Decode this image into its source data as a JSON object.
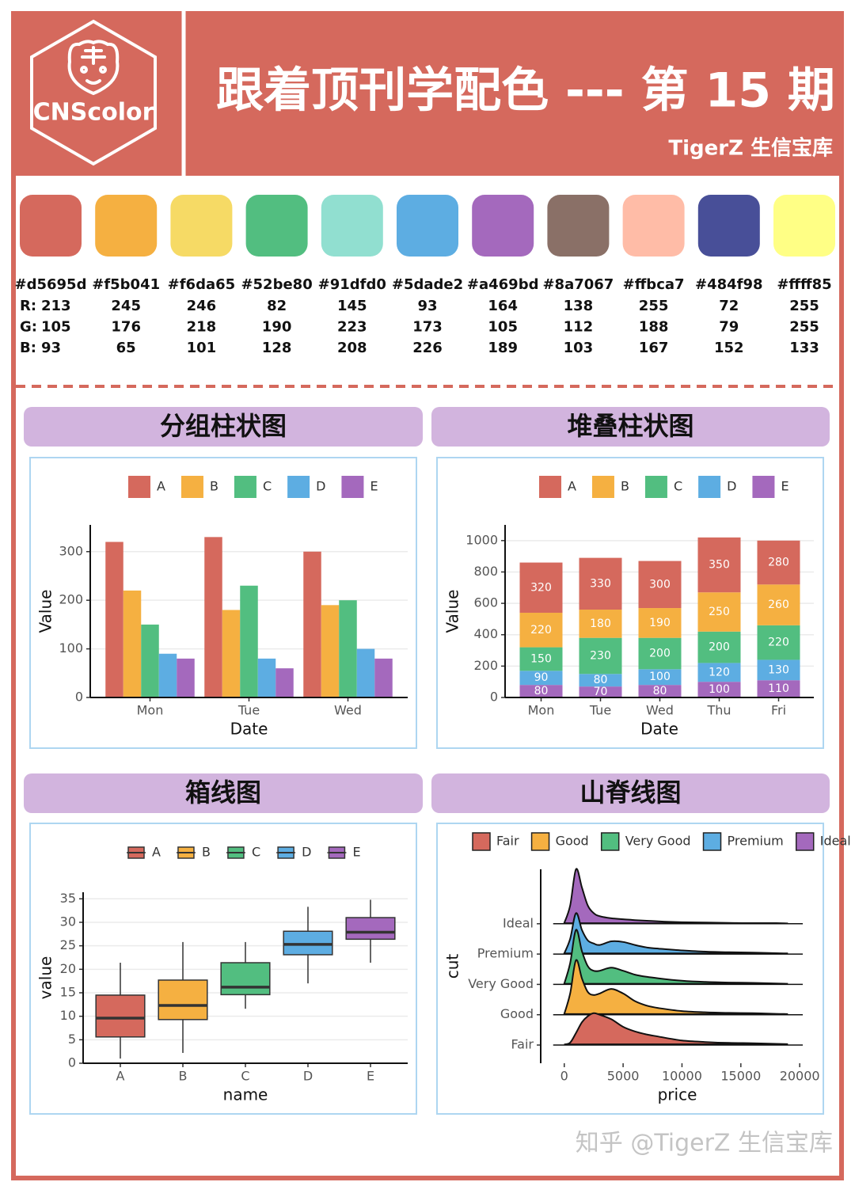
{
  "header": {
    "logo": "CNScolor",
    "title": "跟着顶刊学配色 --- 第 15 期",
    "subtitle": "TigerZ 生信宝库"
  },
  "palette": {
    "channel_labels": [
      "R:",
      "G:",
      "B:"
    ],
    "colors": [
      {
        "hex": "#d5695d",
        "r": 213,
        "g": 105,
        "b": 93
      },
      {
        "hex": "#f5b041",
        "r": 245,
        "g": 176,
        "b": 65
      },
      {
        "hex": "#f6da65",
        "r": 246,
        "g": 218,
        "b": 101
      },
      {
        "hex": "#52be80",
        "r": 82,
        "g": 190,
        "b": 128
      },
      {
        "hex": "#91dfd0",
        "r": 145,
        "g": 223,
        "b": 208
      },
      {
        "hex": "#5dade2",
        "r": 93,
        "g": 173,
        "b": 226
      },
      {
        "hex": "#a469bd",
        "r": 164,
        "g": 105,
        "b": 189
      },
      {
        "hex": "#8a7067",
        "r": 138,
        "g": 112,
        "b": 103
      },
      {
        "hex": "#ffbca7",
        "r": 255,
        "g": 188,
        "b": 167
      },
      {
        "hex": "#484f98",
        "r": 72,
        "g": 79,
        "b": 152
      },
      {
        "hex": "#ffff85",
        "r": 255,
        "g": 255,
        "b": 133
      }
    ]
  },
  "chart_data": [
    {
      "type": "bar",
      "title": "分组柱状图",
      "xlabel": "Date",
      "ylabel": "Value",
      "legend": "top",
      "grid": true,
      "categories": [
        "Mon",
        "Tue",
        "Wed"
      ],
      "series": [
        {
          "name": "A",
          "color": "#d5695d",
          "values": [
            320,
            330,
            300
          ]
        },
        {
          "name": "B",
          "color": "#f5b041",
          "values": [
            220,
            180,
            190
          ]
        },
        {
          "name": "C",
          "color": "#52be80",
          "values": [
            150,
            230,
            200
          ]
        },
        {
          "name": "D",
          "color": "#5dade2",
          "values": [
            90,
            80,
            100
          ]
        },
        {
          "name": "E",
          "color": "#a469bd",
          "values": [
            80,
            60,
            80
          ]
        }
      ],
      "ylim": [
        0,
        355
      ],
      "yticks": [
        0,
        100,
        200,
        300
      ]
    },
    {
      "type": "stacked_bar",
      "title": "堆叠柱状图",
      "xlabel": "Date",
      "ylabel": "Value",
      "legend": "top",
      "grid": true,
      "categories": [
        "Mon",
        "Tue",
        "Wed",
        "Thu",
        "Fri"
      ],
      "series": [
        {
          "name": "A",
          "color": "#d5695d",
          "values": [
            320,
            330,
            300,
            350,
            280
          ]
        },
        {
          "name": "B",
          "color": "#f5b041",
          "values": [
            220,
            180,
            190,
            250,
            260
          ]
        },
        {
          "name": "C",
          "color": "#52be80",
          "values": [
            150,
            230,
            200,
            200,
            220
          ]
        },
        {
          "name": "D",
          "color": "#5dade2",
          "values": [
            90,
            80,
            100,
            120,
            130
          ]
        },
        {
          "name": "E",
          "color": "#a469bd",
          "values": [
            80,
            70,
            80,
            100,
            110
          ]
        }
      ],
      "ylim": [
        0,
        1100
      ],
      "yticks": [
        0,
        200,
        400,
        600,
        800,
        1000
      ]
    },
    {
      "type": "boxplot",
      "title": "箱线图",
      "xlabel": "name",
      "ylabel": "value",
      "legend": "top",
      "grid": true,
      "categories": [
        "A",
        "B",
        "C",
        "D",
        "E"
      ],
      "colors": [
        "#d5695d",
        "#f5b041",
        "#52be80",
        "#5dade2",
        "#a469bd"
      ],
      "boxes": [
        {
          "min": 1.0,
          "q1": 5.6,
          "median": 9.6,
          "q3": 14.5,
          "max": 21.4
        },
        {
          "min": 2.2,
          "q1": 9.3,
          "median": 12.3,
          "q3": 17.7,
          "max": 25.8
        },
        {
          "min": 11.6,
          "q1": 14.6,
          "median": 16.2,
          "q3": 21.4,
          "max": 25.8
        },
        {
          "min": 17.0,
          "q1": 23.1,
          "median": 25.3,
          "q3": 28.1,
          "max": 33.3
        },
        {
          "min": 21.4,
          "q1": 26.4,
          "median": 27.9,
          "q3": 31.0,
          "max": 34.8
        }
      ],
      "ylim": [
        0,
        36.4
      ],
      "yticks": [
        0,
        5,
        10,
        15,
        20,
        25,
        30,
        35
      ]
    },
    {
      "type": "ridgeline",
      "title": "山脊线图",
      "xlabel": "price",
      "ylabel": "cut",
      "legend": "top",
      "grid": false,
      "categories": [
        "Fair",
        "Good",
        "Very Good",
        "Premium",
        "Ideal"
      ],
      "x": [
        0,
        500,
        1000,
        1500,
        2000,
        2500,
        3000,
        4000,
        5000,
        6000,
        7000,
        8000,
        10000,
        12000,
        14000,
        16000,
        18000,
        19000
      ],
      "series": [
        {
          "name": "Fair",
          "color": "#d5695d",
          "values": [
            0.02,
            0.08,
            0.4,
            0.75,
            0.95,
            1.05,
            1.0,
            0.85,
            0.6,
            0.45,
            0.35,
            0.28,
            0.15,
            0.1,
            0.07,
            0.06,
            0.04,
            0.03
          ]
        },
        {
          "name": "Good",
          "color": "#f5b041",
          "values": [
            0.02,
            0.7,
            1.8,
            1.2,
            0.75,
            0.65,
            0.7,
            0.85,
            0.7,
            0.45,
            0.3,
            0.22,
            0.12,
            0.08,
            0.06,
            0.05,
            0.03,
            0.02
          ]
        },
        {
          "name": "Very Good",
          "color": "#52be80",
          "values": [
            0.02,
            0.7,
            1.8,
            1.1,
            0.6,
            0.45,
            0.45,
            0.55,
            0.45,
            0.32,
            0.25,
            0.2,
            0.12,
            0.08,
            0.06,
            0.05,
            0.03,
            0.02
          ]
        },
        {
          "name": "Premium",
          "color": "#5dade2",
          "values": [
            0.02,
            0.5,
            1.35,
            0.8,
            0.45,
            0.35,
            0.3,
            0.42,
            0.4,
            0.3,
            0.22,
            0.18,
            0.12,
            0.08,
            0.06,
            0.05,
            0.03,
            0.02
          ]
        },
        {
          "name": "Ideal",
          "color": "#a469bd",
          "values": [
            0.02,
            0.6,
            1.8,
            1.2,
            0.6,
            0.35,
            0.25,
            0.18,
            0.15,
            0.12,
            0.1,
            0.08,
            0.05,
            0.04,
            0.03,
            0.02,
            0.02,
            0.01
          ]
        }
      ],
      "xlim": [
        -2000,
        21200
      ],
      "xticks": [
        0,
        5000,
        10000,
        15000,
        20000
      ]
    }
  ],
  "watermark": "知乎 @TigerZ 生信宝库"
}
